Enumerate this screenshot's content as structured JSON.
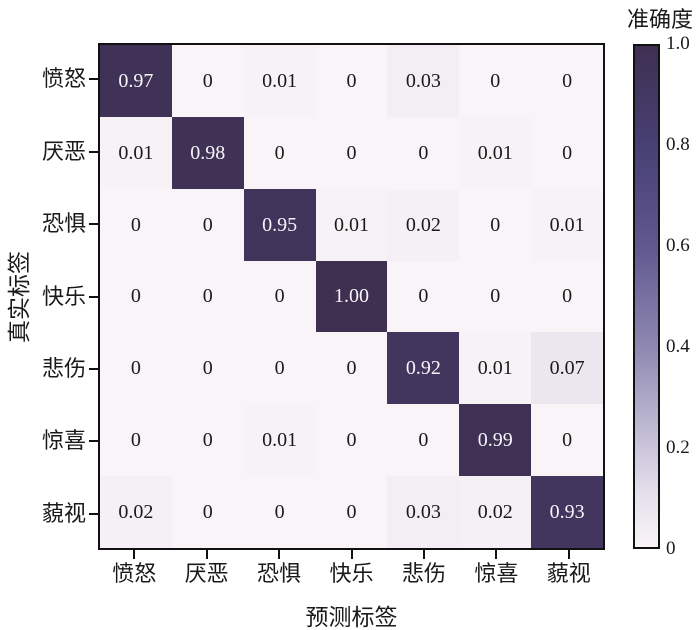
{
  "chart_data": {
    "type": "heatmap",
    "title": "",
    "xlabel": "预测标签",
    "ylabel": "真实标签",
    "x_categories": [
      "愤怒",
      "厌恶",
      "恐惧",
      "快乐",
      "悲伤",
      "惊喜",
      "藐视"
    ],
    "y_categories": [
      "愤怒",
      "厌恶",
      "恐惧",
      "快乐",
      "悲伤",
      "惊喜",
      "藐视"
    ],
    "values": [
      [
        0.97,
        0,
        0.01,
        0,
        0.03,
        0,
        0
      ],
      [
        0.01,
        0.98,
        0,
        0,
        0,
        0.01,
        0
      ],
      [
        0,
        0,
        0.95,
        0.01,
        0.02,
        0,
        0.01
      ],
      [
        0,
        0,
        0,
        1.0,
        0,
        0,
        0
      ],
      [
        0,
        0,
        0,
        0,
        0.92,
        0.01,
        0.07
      ],
      [
        0,
        0,
        0.01,
        0,
        0,
        0.99,
        0
      ],
      [
        0.02,
        0,
        0,
        0,
        0.03,
        0.02,
        0.93
      ]
    ],
    "cell_labels": [
      [
        "0.97",
        "0",
        "0.01",
        "0",
        "0.03",
        "0",
        "0"
      ],
      [
        "0.01",
        "0.98",
        "0",
        "0",
        "0",
        "0.01",
        "0"
      ],
      [
        "0",
        "0",
        "0.95",
        "0.01",
        "0.02",
        "0",
        "0.01"
      ],
      [
        "0",
        "0",
        "0",
        "1.00",
        "0",
        "0",
        "0"
      ],
      [
        "0",
        "0",
        "0",
        "0",
        "0.92",
        "0.01",
        "0.07"
      ],
      [
        "0",
        "0",
        "0.01",
        "0",
        "0",
        "0.99",
        "0"
      ],
      [
        "0.02",
        "0",
        "0",
        "0",
        "0.03",
        "0.02",
        "0.93"
      ]
    ],
    "colorbar": {
      "label": "准确度",
      "range": [
        0,
        1
      ],
      "ticks": [
        {
          "label": "1.0",
          "value": 1.0
        },
        {
          "label": "0.8",
          "value": 0.8
        },
        {
          "label": "0.6",
          "value": 0.6
        },
        {
          "label": "0.4",
          "value": 0.4
        },
        {
          "label": "0.2",
          "value": 0.2
        },
        {
          "label": "0",
          "value": 0.0
        }
      ]
    },
    "colormap_stops": [
      {
        "value": 0.0,
        "color": "#f9f4f7"
      },
      {
        "value": 0.1,
        "color": "#e6e1ec"
      },
      {
        "value": 0.2,
        "color": "#cac5da"
      },
      {
        "value": 0.4,
        "color": "#8e88b2"
      },
      {
        "value": 0.6,
        "color": "#60588e"
      },
      {
        "value": 0.8,
        "color": "#474073"
      },
      {
        "value": 1.0,
        "color": "#3f3052"
      }
    ],
    "legend_position": "right",
    "grid": false,
    "axis_color": "#111111",
    "cell_text_dark": "#1a1a1a",
    "cell_text_light": "#f7f5f9"
  }
}
